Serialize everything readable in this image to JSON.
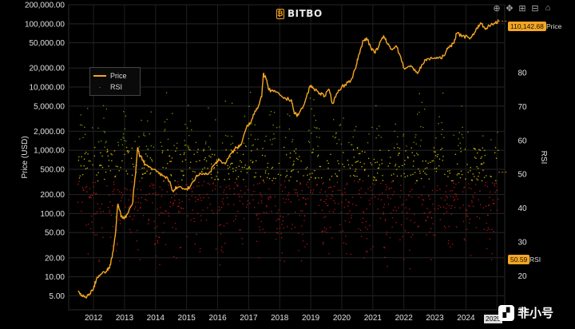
{
  "brand": {
    "name": "BITBO",
    "mark": "₿"
  },
  "toolbar": [
    {
      "name": "zoom-icon",
      "glyph": "⊕"
    },
    {
      "name": "pan-icon",
      "glyph": "✥"
    },
    {
      "name": "zoom-in-icon",
      "glyph": "⊞"
    },
    {
      "name": "zoom-out-icon",
      "glyph": "⊟"
    },
    {
      "name": "reset-icon",
      "glyph": "⌂"
    }
  ],
  "legend": {
    "price": "Price",
    "rsi": "RSI"
  },
  "price_badge": {
    "value": "110,142.68",
    "label": "Price"
  },
  "rsi_badge": {
    "value": "50.59",
    "label": "RSI"
  },
  "date_tip": "2025",
  "watermark": {
    "icon": "▞",
    "text": "非小号"
  },
  "chart_data": {
    "type": "line",
    "ylabel": "Price (USD)",
    "y2label": "RSI",
    "y_scale": "log",
    "ylim": [
      3,
      200000
    ],
    "y2lim": [
      10,
      100
    ],
    "x_ticks": [
      "2012",
      "2013",
      "2014",
      "2015",
      "2016",
      "2017",
      "2018",
      "2019",
      "2020",
      "2021",
      "2022",
      "2023",
      "2024",
      "2025"
    ],
    "y_ticks": [
      "200,000.00",
      "100,000.00",
      "50,000.00",
      "20,000.00",
      "10,000.00",
      "5,000.00",
      "2,000.00",
      "1,000.00",
      "500.00",
      "200.00",
      "100.00",
      "50.00",
      "20.00",
      "10.00",
      "5.00"
    ],
    "y_tick_values": [
      200000,
      100000,
      50000,
      20000,
      10000,
      5000,
      2000,
      1000,
      500,
      200,
      100,
      50,
      20,
      10,
      5
    ],
    "y2_ticks": [
      "80",
      "70",
      "60",
      "50",
      "40",
      "30",
      "20",
      "10"
    ],
    "y2_tick_values": [
      80,
      70,
      60,
      50,
      40,
      30,
      20,
      10
    ],
    "grid": true,
    "legend_position": "top-left",
    "colors": {
      "price": "#f5a623",
      "rsi_high": "#7ab800",
      "rsi_mid": "#e6d800",
      "rsi_low": "#d01818",
      "axis_right": "#7ab800"
    },
    "series": [
      {
        "name": "Price",
        "x": [
          2012.0,
          2012.1,
          2012.2,
          2012.35,
          2012.5,
          2012.6,
          2012.75,
          2012.9,
          2013.0,
          2013.1,
          2013.2,
          2013.28,
          2013.32,
          2013.4,
          2013.5,
          2013.6,
          2013.75,
          2013.85,
          2013.92,
          2014.0,
          2014.1,
          2014.15,
          2014.3,
          2014.45,
          2014.6,
          2014.8,
          2014.95,
          2015.05,
          2015.2,
          2015.45,
          2015.6,
          2015.8,
          2015.95,
          2016.2,
          2016.45,
          2016.55,
          2016.75,
          2016.95,
          2017.1,
          2017.25,
          2017.45,
          2017.55,
          2017.7,
          2017.8,
          2017.92,
          2017.97,
          2018.05,
          2018.15,
          2018.3,
          2018.5,
          2018.7,
          2018.88,
          2018.97,
          2019.1,
          2019.3,
          2019.48,
          2019.6,
          2019.8,
          2019.95,
          2020.1,
          2020.2,
          2020.4,
          2020.6,
          2020.8,
          2020.95,
          2021.05,
          2021.2,
          2021.3,
          2021.45,
          2021.55,
          2021.7,
          2021.85,
          2021.95,
          2022.1,
          2022.25,
          2022.4,
          2022.5,
          2022.7,
          2022.85,
          2022.95,
          2023.1,
          2023.25,
          2023.5,
          2023.7,
          2023.85,
          2023.97,
          2024.1,
          2024.2,
          2024.4,
          2024.6,
          2024.75,
          2024.9,
          2025.0,
          2025.15,
          2025.3,
          2025.45,
          2025.55
        ],
        "values": [
          6,
          5,
          4.8,
          5.1,
          6.5,
          9.5,
          11,
          12,
          13.5,
          20,
          45,
          140,
          120,
          90,
          85,
          100,
          140,
          400,
          1100,
          800,
          700,
          600,
          550,
          500,
          450,
          380,
          320,
          230,
          260,
          240,
          260,
          380,
          430,
          420,
          650,
          700,
          620,
          900,
          1100,
          1200,
          2500,
          2700,
          4200,
          4700,
          7000,
          16000,
          14000,
          9000,
          8500,
          7500,
          6500,
          6300,
          3800,
          3600,
          5500,
          10500,
          9500,
          8000,
          7200,
          9000,
          5500,
          9000,
          11000,
          13000,
          20000,
          33000,
          55000,
          60000,
          40000,
          35000,
          45000,
          65000,
          50000,
          40000,
          45000,
          30000,
          20000,
          21000,
          19000,
          16500,
          23000,
          28000,
          29000,
          28000,
          36000,
          43000,
          50000,
          70000,
          65000,
          60000,
          67000,
          95000,
          100000,
          85000,
          95000,
          105000,
          110142.68
        ]
      },
      {
        "name": "RSI",
        "x_range": [
          2012.0,
          2025.55
        ],
        "mean": 47,
        "range": [
          14,
          91
        ],
        "last": 50.59
      }
    ]
  }
}
